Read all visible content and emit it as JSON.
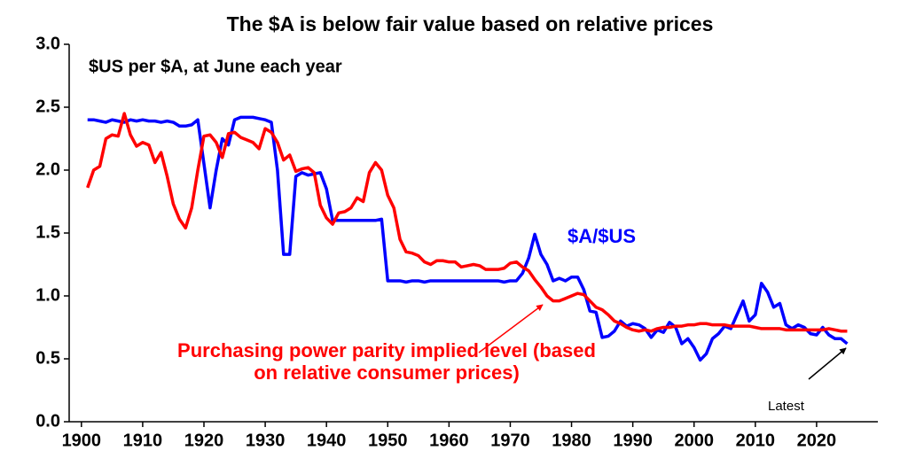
{
  "chart_data": {
    "type": "line",
    "title": "The $A is below fair value based on relative prices",
    "subtitle": "$US per $A, at June each year",
    "annotation": "Latest",
    "x": [
      1901,
      1902,
      1903,
      1904,
      1905,
      1906,
      1907,
      1908,
      1909,
      1910,
      1911,
      1912,
      1913,
      1914,
      1915,
      1916,
      1917,
      1918,
      1919,
      1920,
      1921,
      1922,
      1923,
      1924,
      1925,
      1926,
      1927,
      1928,
      1929,
      1930,
      1931,
      1932,
      1933,
      1934,
      1935,
      1936,
      1937,
      1938,
      1939,
      1940,
      1941,
      1942,
      1943,
      1944,
      1945,
      1946,
      1947,
      1948,
      1949,
      1950,
      1951,
      1952,
      1953,
      1954,
      1955,
      1956,
      1957,
      1958,
      1959,
      1960,
      1961,
      1962,
      1963,
      1964,
      1965,
      1966,
      1967,
      1968,
      1969,
      1970,
      1971,
      1972,
      1973,
      1974,
      1975,
      1976,
      1977,
      1978,
      1979,
      1980,
      1981,
      1982,
      1983,
      1984,
      1985,
      1986,
      1987,
      1988,
      1989,
      1990,
      1991,
      1992,
      1993,
      1994,
      1995,
      1996,
      1997,
      1998,
      1999,
      2000,
      2001,
      2002,
      2003,
      2004,
      2005,
      2006,
      2007,
      2008,
      2009,
      2010,
      2011,
      2012,
      2013,
      2014,
      2015,
      2016,
      2017,
      2018,
      2019,
      2020,
      2021,
      2022,
      2023,
      2024,
      2025
    ],
    "series": [
      {
        "name": "$A/$US",
        "color": "#0000ff",
        "values": [
          2.4,
          2.4,
          2.39,
          2.38,
          2.4,
          2.39,
          2.38,
          2.4,
          2.39,
          2.4,
          2.39,
          2.39,
          2.38,
          2.39,
          2.38,
          2.35,
          2.35,
          2.36,
          2.4,
          2.05,
          1.7,
          2.0,
          2.25,
          2.2,
          2.4,
          2.42,
          2.42,
          2.42,
          2.41,
          2.4,
          2.38,
          2.0,
          1.33,
          1.33,
          1.95,
          1.98,
          1.96,
          1.97,
          1.98,
          1.85,
          1.6,
          1.6,
          1.6,
          1.6,
          1.6,
          1.6,
          1.6,
          1.6,
          1.61,
          1.12,
          1.12,
          1.12,
          1.11,
          1.12,
          1.12,
          1.11,
          1.12,
          1.12,
          1.12,
          1.12,
          1.12,
          1.12,
          1.12,
          1.12,
          1.12,
          1.12,
          1.12,
          1.12,
          1.11,
          1.12,
          1.12,
          1.18,
          1.3,
          1.49,
          1.33,
          1.25,
          1.12,
          1.14,
          1.12,
          1.15,
          1.15,
          1.05,
          0.88,
          0.87,
          0.67,
          0.68,
          0.72,
          0.8,
          0.76,
          0.78,
          0.77,
          0.74,
          0.67,
          0.73,
          0.71,
          0.79,
          0.75,
          0.62,
          0.66,
          0.59,
          0.49,
          0.54,
          0.66,
          0.7,
          0.76,
          0.74,
          0.85,
          0.96,
          0.8,
          0.85,
          1.1,
          1.03,
          0.91,
          0.94,
          0.77,
          0.74,
          0.77,
          0.75,
          0.7,
          0.69,
          0.75,
          0.69,
          0.66,
          0.66,
          0.62
        ]
      },
      {
        "name": "Purchasing power parity implied level (based on relative consumer prices)",
        "color": "#ff0000",
        "values": [
          1.86,
          2.0,
          2.03,
          2.25,
          2.28,
          2.27,
          2.45,
          2.28,
          2.19,
          2.22,
          2.2,
          2.06,
          2.14,
          1.95,
          1.73,
          1.61,
          1.54,
          1.7,
          2.0,
          2.27,
          2.28,
          2.22,
          2.1,
          2.29,
          2.3,
          2.26,
          2.24,
          2.22,
          2.17,
          2.33,
          2.3,
          2.22,
          2.08,
          2.12,
          1.99,
          2.01,
          2.02,
          1.98,
          1.72,
          1.62,
          1.57,
          1.66,
          1.67,
          1.7,
          1.78,
          1.75,
          1.98,
          2.06,
          2.0,
          1.8,
          1.7,
          1.45,
          1.35,
          1.34,
          1.32,
          1.27,
          1.25,
          1.28,
          1.28,
          1.27,
          1.27,
          1.23,
          1.24,
          1.25,
          1.24,
          1.21,
          1.21,
          1.21,
          1.22,
          1.26,
          1.27,
          1.23,
          1.2,
          1.13,
          1.07,
          1.0,
          0.96,
          0.96,
          0.98,
          1.0,
          1.02,
          1.01,
          0.96,
          0.91,
          0.89,
          0.85,
          0.8,
          0.78,
          0.75,
          0.73,
          0.72,
          0.73,
          0.72,
          0.74,
          0.75,
          0.75,
          0.76,
          0.76,
          0.77,
          0.77,
          0.78,
          0.78,
          0.77,
          0.77,
          0.77,
          0.76,
          0.76,
          0.76,
          0.76,
          0.75,
          0.74,
          0.74,
          0.74,
          0.74,
          0.73,
          0.73,
          0.73,
          0.73,
          0.73,
          0.73,
          0.73,
          0.74,
          0.73,
          0.72,
          0.72
        ]
      }
    ],
    "xlim": [
      1898,
      2030
    ],
    "xticks": [
      1900,
      1910,
      1920,
      1930,
      1940,
      1950,
      1960,
      1970,
      1980,
      1990,
      2000,
      2010,
      2020
    ],
    "ylim": [
      0,
      3
    ],
    "yticks": [
      {
        "value": 0,
        "label": "0.0"
      },
      0.5,
      {
        "value": 1,
        "label": "1.0"
      },
      1.5,
      {
        "value": 2,
        "label": "2.0"
      },
      2.5,
      {
        "value": 3,
        "label": "3.0"
      }
    ],
    "grid": false
  }
}
